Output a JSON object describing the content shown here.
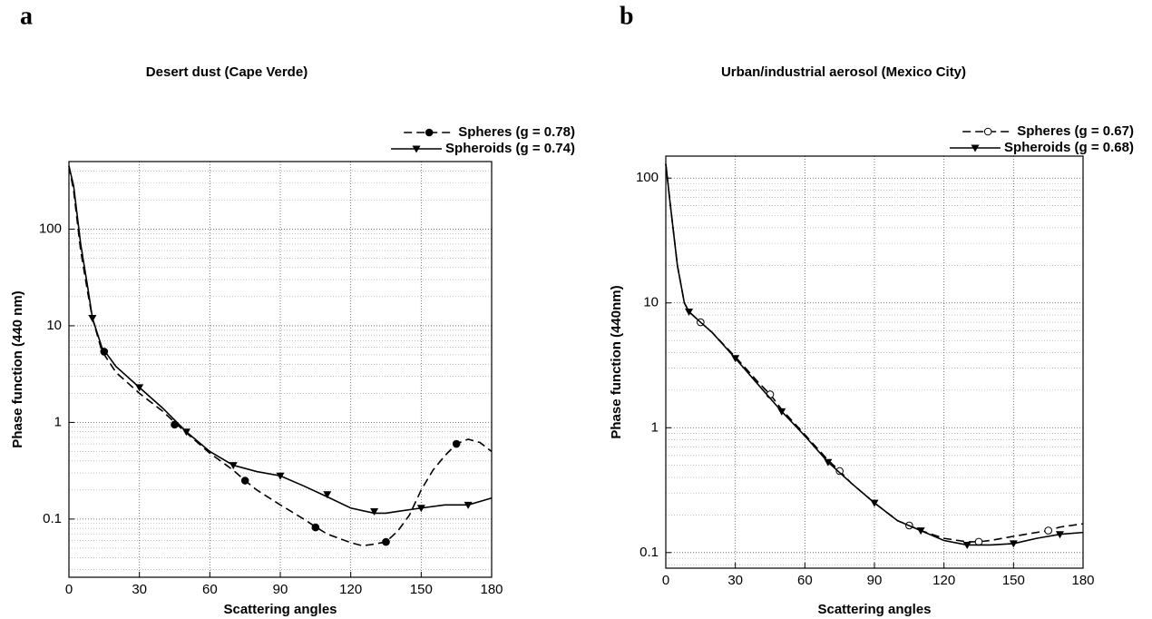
{
  "chart_data": [
    {
      "type": "line",
      "panel_label": "a",
      "title": "Desert dust (Cape Verde)",
      "xlabel": "Scattering angles",
      "ylabel": "Phase function (440 nm)",
      "xlim": [
        0,
        180
      ],
      "xticks": [
        0,
        30,
        60,
        90,
        120,
        150,
        180
      ],
      "ylim": [
        0.025,
        500
      ],
      "yticks": [
        0.1,
        1,
        10,
        100
      ],
      "log_y": true,
      "grid": true,
      "legend": "top-right",
      "series": [
        {
          "name": "Spheres (g = 0.78)",
          "color": "#000000",
          "linestyle": "dashed",
          "marker": "circle",
          "x": [
            0,
            2,
            5,
            8,
            10,
            14,
            20,
            30,
            40,
            45,
            50,
            60,
            70,
            75,
            80,
            90,
            100,
            105,
            110,
            120,
            125,
            130,
            135,
            140,
            145,
            150,
            155,
            160,
            165,
            170,
            175,
            180
          ],
          "values": [
            450,
            250,
            60,
            22,
            12,
            5.5,
            3.3,
            2.0,
            1.3,
            1.0,
            0.78,
            0.48,
            0.32,
            0.25,
            0.2,
            0.14,
            0.1,
            0.083,
            0.07,
            0.057,
            0.053,
            0.055,
            0.058,
            0.075,
            0.11,
            0.2,
            0.32,
            0.45,
            0.6,
            0.67,
            0.62,
            0.5
          ],
          "markers": {
            "x": [
              15,
              45,
              75,
              105,
              135,
              165
            ],
            "values": [
              5.4,
              0.95,
              0.25,
              0.082,
              0.058,
              0.6
            ]
          }
        },
        {
          "name": "Spheroids (g = 0.74)",
          "color": "#000000",
          "linestyle": "solid",
          "marker": "triangle",
          "x": [
            0,
            2,
            5,
            8,
            10,
            14,
            20,
            30,
            40,
            50,
            60,
            70,
            80,
            90,
            100,
            110,
            120,
            130,
            135,
            140,
            150,
            160,
            170,
            180
          ],
          "values": [
            450,
            280,
            70,
            25,
            12,
            6.0,
            3.8,
            2.3,
            1.4,
            0.8,
            0.5,
            0.36,
            0.31,
            0.28,
            0.22,
            0.17,
            0.13,
            0.115,
            0.115,
            0.12,
            0.13,
            0.14,
            0.14,
            0.165
          ],
          "markers": {
            "x": [
              10,
              30,
              50,
              70,
              90,
              110,
              130,
              150,
              170
            ],
            "values": [
              12,
              2.3,
              0.8,
              0.36,
              0.28,
              0.18,
              0.12,
              0.13,
              0.14
            ]
          }
        }
      ]
    },
    {
      "type": "line",
      "panel_label": "b",
      "title": "Urban/industrial aerosol (Mexico City)",
      "xlabel": "Scattering angles",
      "ylabel": "Phase function (440nm)",
      "xlim": [
        0,
        180
      ],
      "xticks": [
        0,
        30,
        60,
        90,
        120,
        150,
        180
      ],
      "ylim": [
        0.075,
        150
      ],
      "yticks": [
        0.1,
        1,
        10,
        100
      ],
      "log_y": true,
      "grid": true,
      "legend": "top-right",
      "series": [
        {
          "name": "Spheres (g = 0.67)",
          "color": "#000000",
          "linestyle": "dashed",
          "marker": "circle-open",
          "x": [
            0,
            2,
            5,
            8,
            10,
            15,
            20,
            30,
            40,
            45,
            50,
            60,
            70,
            75,
            80,
            90,
            100,
            105,
            110,
            120,
            130,
            135,
            140,
            150,
            160,
            165,
            170,
            180
          ],
          "values": [
            130,
            60,
            20,
            10,
            8.5,
            7,
            5.8,
            3.7,
            2.3,
            1.85,
            1.4,
            0.88,
            0.55,
            0.45,
            0.36,
            0.25,
            0.18,
            0.165,
            0.15,
            0.13,
            0.122,
            0.122,
            0.125,
            0.135,
            0.145,
            0.15,
            0.16,
            0.17
          ],
          "markers": {
            "x": [
              15,
              45,
              75,
              105,
              135,
              165
            ],
            "values": [
              7,
              1.85,
              0.45,
              0.165,
              0.122,
              0.15
            ]
          }
        },
        {
          "name": "Spheroids (g = 0.68)",
          "color": "#000000",
          "linestyle": "solid",
          "marker": "triangle",
          "x": [
            0,
            2,
            5,
            8,
            10,
            15,
            20,
            30,
            40,
            50,
            60,
            70,
            80,
            90,
            100,
            110,
            120,
            130,
            140,
            150,
            160,
            170,
            180
          ],
          "values": [
            130,
            60,
            20,
            10,
            8.5,
            7,
            5.8,
            3.6,
            2.2,
            1.35,
            0.86,
            0.53,
            0.36,
            0.25,
            0.18,
            0.15,
            0.125,
            0.115,
            0.115,
            0.118,
            0.13,
            0.14,
            0.145
          ],
          "markers": {
            "x": [
              10,
              30,
              50,
              70,
              90,
              110,
              130,
              150,
              170
            ],
            "values": [
              8.5,
              3.6,
              1.35,
              0.53,
              0.25,
              0.15,
              0.115,
              0.118,
              0.14
            ]
          }
        }
      ]
    }
  ]
}
